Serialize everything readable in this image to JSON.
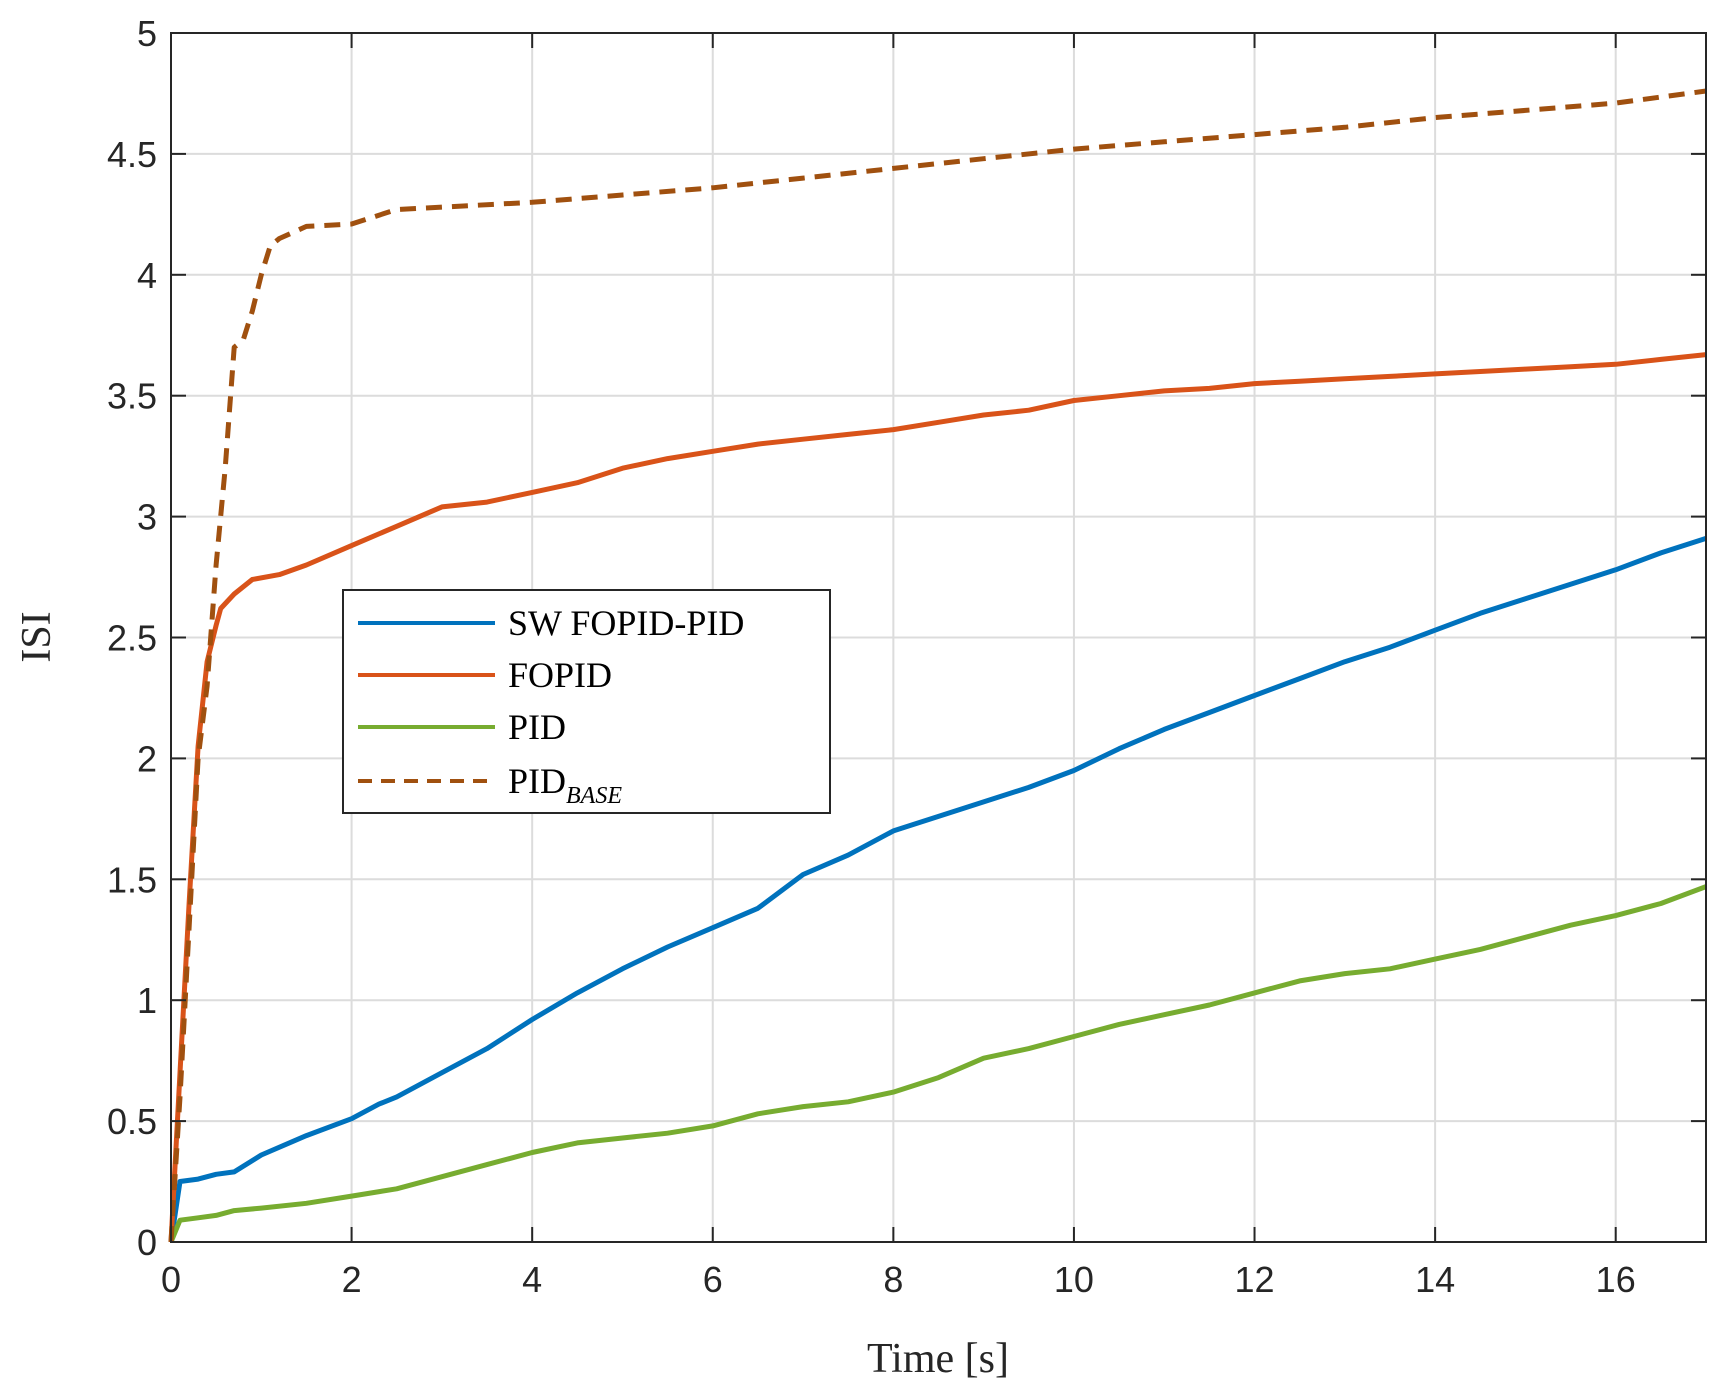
{
  "chart_data": {
    "type": "line",
    "title": "",
    "xlabel": "Time [s]",
    "ylabel": "ISI",
    "xlim": [
      0,
      17
    ],
    "ylim": [
      0,
      5
    ],
    "xticks": [
      0,
      2,
      4,
      6,
      8,
      10,
      12,
      14,
      16
    ],
    "yticks": [
      0,
      0.5,
      1,
      1.5,
      2,
      2.5,
      3,
      3.5,
      4,
      4.5,
      5
    ],
    "xtick_labels": [
      "0",
      "2",
      "4",
      "6",
      "8",
      "10",
      "12",
      "14",
      "16"
    ],
    "ytick_labels": [
      "0",
      "0.5",
      "1",
      "1.5",
      "2",
      "2.5",
      "3",
      "3.5",
      "4",
      "4.5",
      "5"
    ],
    "grid": true,
    "legend_position": "center-left",
    "series": [
      {
        "name": "SW FOPID-PID",
        "color": "#0072BD",
        "dash": "solid",
        "x": [
          0,
          0.1,
          0.3,
          0.5,
          0.7,
          1.0,
          1.5,
          2.0,
          2.3,
          2.5,
          3.0,
          3.5,
          4.0,
          4.5,
          5.0,
          5.5,
          6.0,
          6.5,
          7.0,
          7.5,
          8.0,
          8.5,
          9.0,
          9.5,
          10.0,
          10.5,
          11.0,
          11.5,
          12.0,
          12.5,
          13.0,
          13.5,
          14.0,
          14.5,
          15.0,
          15.5,
          16.0,
          16.5,
          17.0
        ],
        "y": [
          0,
          0.25,
          0.26,
          0.28,
          0.29,
          0.36,
          0.44,
          0.51,
          0.57,
          0.6,
          0.7,
          0.8,
          0.92,
          1.03,
          1.13,
          1.22,
          1.3,
          1.38,
          1.52,
          1.6,
          1.7,
          1.76,
          1.82,
          1.88,
          1.95,
          2.04,
          2.12,
          2.19,
          2.26,
          2.33,
          2.4,
          2.46,
          2.53,
          2.6,
          2.66,
          2.72,
          2.78,
          2.85,
          2.91
        ]
      },
      {
        "name": "FOPID",
        "color": "#D95319",
        "dash": "solid",
        "x": [
          0,
          0.1,
          0.2,
          0.3,
          0.4,
          0.5,
          0.55,
          0.7,
          0.9,
          1.2,
          1.5,
          2.0,
          2.5,
          3.0,
          3.5,
          4.0,
          4.5,
          5.0,
          5.5,
          6.0,
          6.5,
          7.0,
          7.5,
          8.0,
          8.5,
          9.0,
          9.5,
          10.0,
          10.5,
          11.0,
          11.5,
          12.0,
          12.5,
          13.0,
          13.5,
          14.0,
          14.5,
          15.0,
          15.5,
          16.0,
          16.5,
          17.0
        ],
        "y": [
          0,
          0.7,
          1.4,
          2.05,
          2.4,
          2.55,
          2.62,
          2.68,
          2.74,
          2.76,
          2.8,
          2.88,
          2.96,
          3.04,
          3.06,
          3.1,
          3.14,
          3.2,
          3.24,
          3.27,
          3.3,
          3.32,
          3.34,
          3.36,
          3.39,
          3.42,
          3.44,
          3.48,
          3.5,
          3.52,
          3.53,
          3.55,
          3.56,
          3.57,
          3.58,
          3.59,
          3.6,
          3.61,
          3.62,
          3.63,
          3.65,
          3.67
        ]
      },
      {
        "name": "PID",
        "color": "#77AC30",
        "dash": "solid",
        "x": [
          0,
          0.1,
          0.3,
          0.5,
          0.7,
          1.0,
          1.5,
          2.0,
          2.5,
          3.0,
          3.5,
          4.0,
          4.5,
          5.0,
          5.5,
          6.0,
          6.5,
          7.0,
          7.5,
          8.0,
          8.5,
          9.0,
          9.5,
          10.0,
          10.5,
          11.0,
          11.5,
          12.0,
          12.5,
          13.0,
          13.5,
          14.0,
          14.5,
          15.0,
          15.5,
          16.0,
          16.5,
          17.0
        ],
        "y": [
          0,
          0.09,
          0.1,
          0.11,
          0.13,
          0.14,
          0.16,
          0.19,
          0.22,
          0.27,
          0.32,
          0.37,
          0.41,
          0.43,
          0.45,
          0.48,
          0.53,
          0.56,
          0.58,
          0.62,
          0.68,
          0.76,
          0.8,
          0.85,
          0.9,
          0.94,
          0.98,
          1.03,
          1.08,
          1.11,
          1.13,
          1.17,
          1.21,
          1.26,
          1.31,
          1.35,
          1.4,
          1.47
        ]
      },
      {
        "name": "PID_BASE",
        "label_main": "PID",
        "label_sub": "BASE",
        "color": "#A0500F",
        "dash": "dashed",
        "x": [
          0,
          0.1,
          0.2,
          0.3,
          0.4,
          0.5,
          0.6,
          0.7,
          0.8,
          0.9,
          1.0,
          1.1,
          1.2,
          1.5,
          2.0,
          2.5,
          3.0,
          4.0,
          5.0,
          6.0,
          7.0,
          8.0,
          9.0,
          10.0,
          11.0,
          12.0,
          13.0,
          14.0,
          15.0,
          16.0,
          17.0
        ],
        "y": [
          0,
          0.6,
          1.3,
          2.0,
          2.3,
          2.8,
          3.2,
          3.7,
          3.73,
          3.85,
          4.0,
          4.12,
          4.15,
          4.2,
          4.21,
          4.27,
          4.28,
          4.3,
          4.33,
          4.36,
          4.4,
          4.44,
          4.48,
          4.52,
          4.55,
          4.58,
          4.61,
          4.65,
          4.68,
          4.71,
          4.76
        ]
      }
    ]
  }
}
